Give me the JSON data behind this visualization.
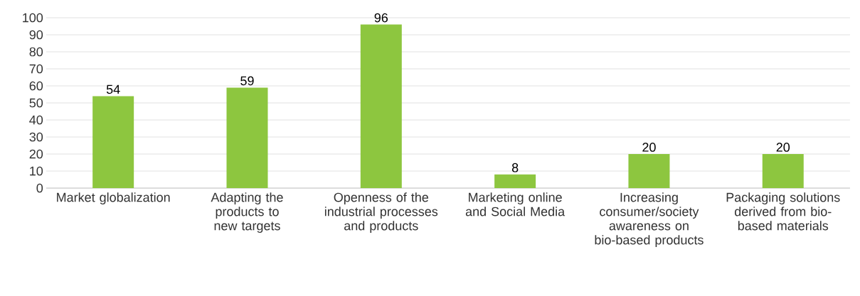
{
  "chart_data": {
    "type": "bar",
    "categories": [
      "Market globalization",
      "Adapting the products to new targets",
      "Openness of the industrial processes and products",
      "Marketing online and Social Media",
      "Increasing consumer/society awareness on bio-based products",
      "Packaging solutions derived from bio-based materials"
    ],
    "values": [
      54,
      59,
      96,
      8,
      20,
      20
    ],
    "color": "#8dc63f",
    "ylim": [
      0,
      100
    ],
    "yticks": [
      0,
      10,
      20,
      30,
      40,
      50,
      60,
      70,
      80,
      90,
      100
    ],
    "grid": "y",
    "data_labels": true
  }
}
